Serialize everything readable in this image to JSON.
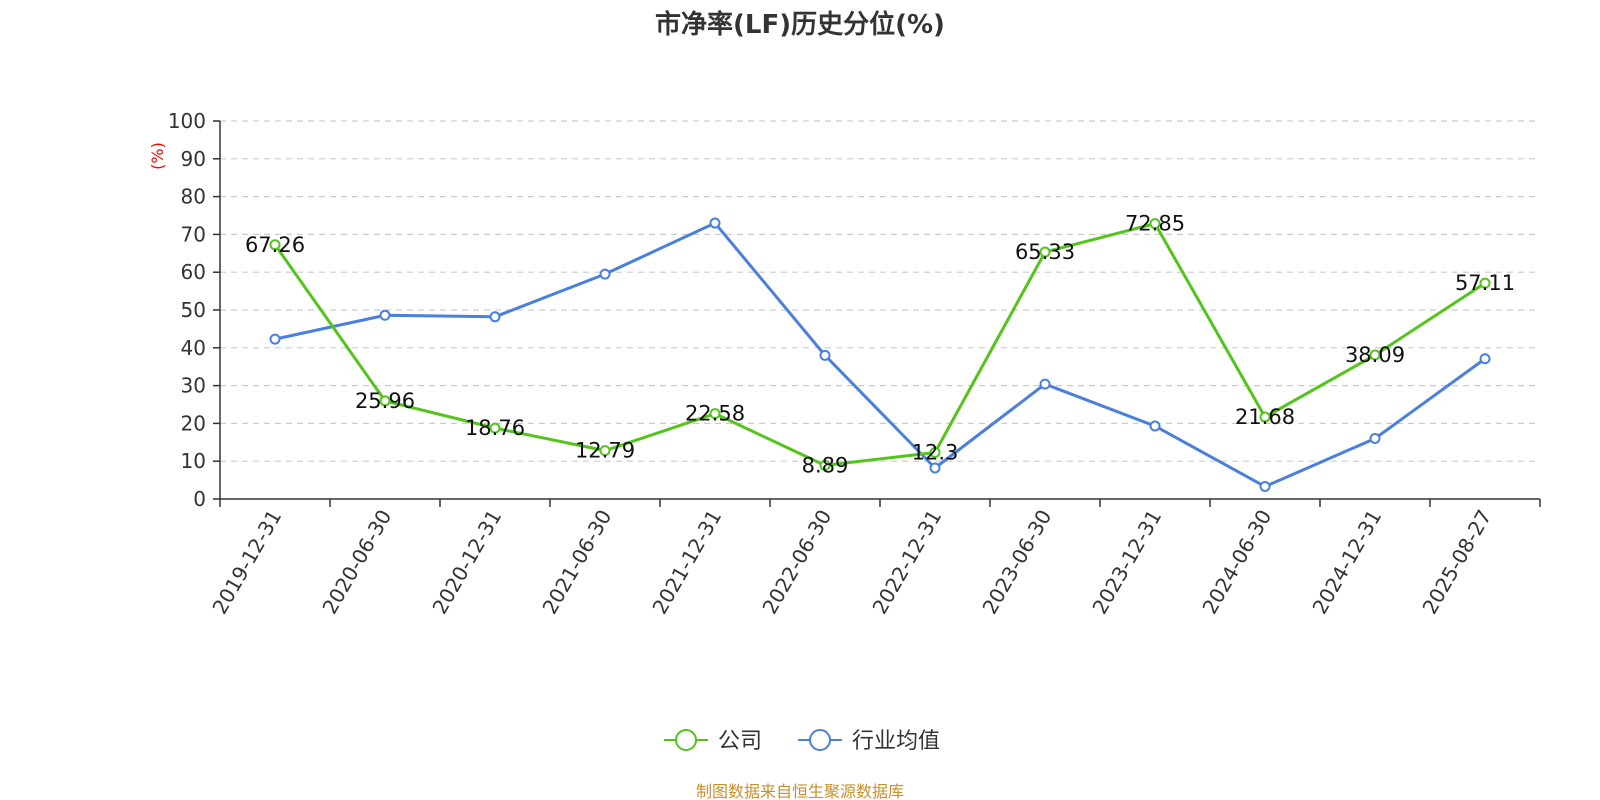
{
  "chart_data": {
    "type": "line",
    "title": "市净率(LF)历史分位(%)",
    "ylabel": "(%)",
    "ylim": [
      0,
      100
    ],
    "yticks": [
      0,
      10,
      20,
      30,
      40,
      50,
      60,
      70,
      80,
      90,
      100
    ],
    "grid": true,
    "legend_position": "bottom",
    "categories": [
      "2019-12-31",
      "2020-06-30",
      "2020-12-31",
      "2021-06-30",
      "2021-12-31",
      "2022-06-30",
      "2022-12-31",
      "2023-06-30",
      "2023-12-31",
      "2024-06-30",
      "2024-12-31",
      "2025-08-27"
    ],
    "series": [
      {
        "name": "公司",
        "color": "#52c41a",
        "show_labels": true,
        "values": [
          67.26,
          25.96,
          18.76,
          12.79,
          22.58,
          8.89,
          12.3,
          65.33,
          72.85,
          21.68,
          38.09,
          57.11
        ]
      },
      {
        "name": "行业均值",
        "color": "#4a7fdc",
        "show_labels": false,
        "values": [
          42.3,
          48.6,
          48.2,
          59.5,
          73.0,
          38.0,
          8.2,
          30.4,
          19.3,
          3.3,
          16.0,
          37.1
        ]
      }
    ]
  },
  "source_note": "制图数据来自恒生聚源数据库"
}
